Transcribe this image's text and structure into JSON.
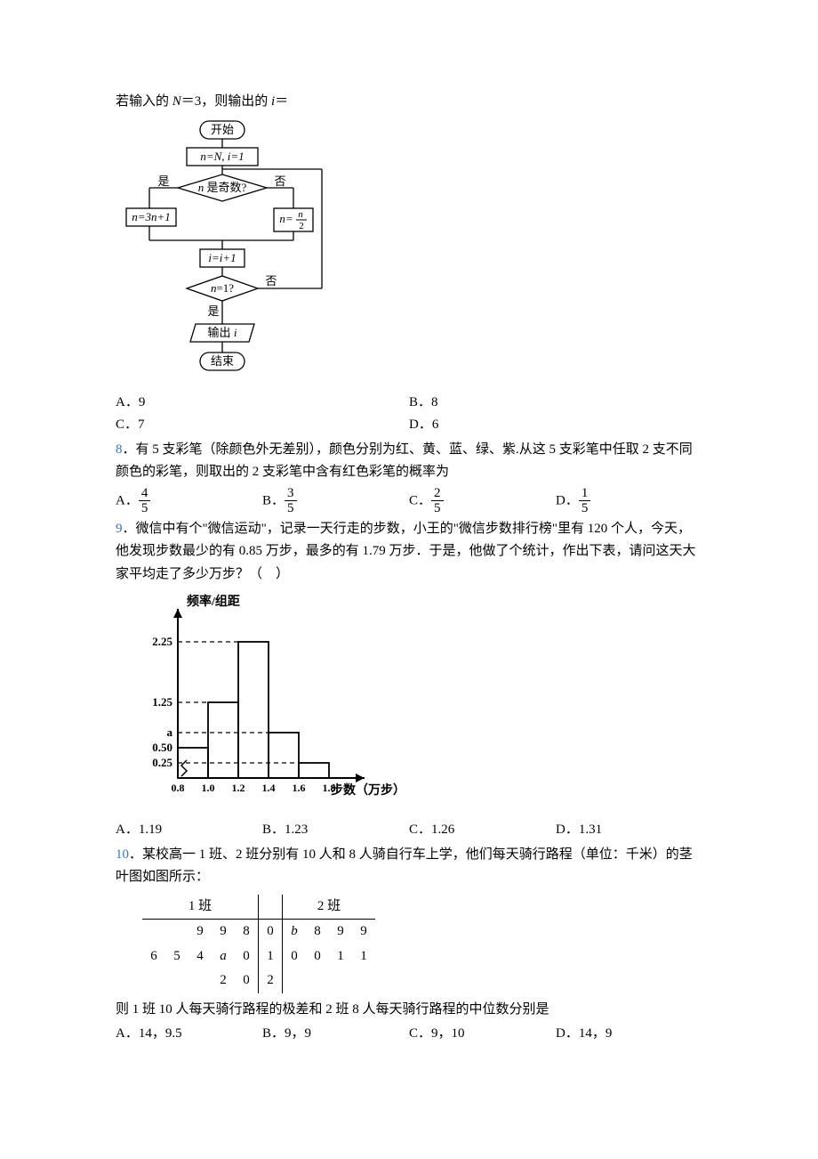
{
  "q7": {
    "intro_prefix": "若输入的 ",
    "intro_var1": "N",
    "intro_mid": "＝3，则输出的 ",
    "intro_var2": "i",
    "intro_suffix": "＝",
    "optA": "A．9",
    "optB": "B．8",
    "optC": "C．7",
    "optD": "D．6",
    "flow": {
      "start": "开始",
      "init_a": "n=N,",
      "init_b": " i=1",
      "cond1": "n 是奇数?",
      "yes": "是",
      "no": "否",
      "left_a": "n=",
      "left_b": "3n+1",
      "right_a": "n=",
      "right_num": "n",
      "right_den": "2",
      "inc": "i=i+1",
      "cond2": "n=1?",
      "out_a": "输出 ",
      "out_b": "i",
      "end": "结束",
      "colors": {
        "stroke": "#000000",
        "fill": "#ffffff",
        "text": "#000000"
      }
    }
  },
  "q8": {
    "num": "8",
    "text": "．有 5 支彩笔（除颜色外无差别），颜色分别为红、黄、蓝、绿、紫.从这 5 支彩笔中任取 2 支不同颜色的彩笔，则取出的 2 支彩笔中含有红色彩笔的概率为",
    "A": {
      "label": "A．",
      "num": "4",
      "den": "5"
    },
    "B": {
      "label": "B．",
      "num": "3",
      "den": "5"
    },
    "C": {
      "label": "C．",
      "num": "2",
      "den": "5"
    },
    "D": {
      "label": "D．",
      "num": "1",
      "den": "5"
    }
  },
  "q9": {
    "num": "9",
    "text": "．微信中有个\"微信运动\"，记录一天行走的步数，小王的\"微信步数排行榜\"里有 120 个人，今天，他发现步数最少的有 0.85 万步，最多的有 1.79 万步．于是，他做了个统计，作出下表，请问这天大家平均走了多少万步？（　）",
    "chart": {
      "ylabel": "频率/组距",
      "xlabel": "步数（万步）",
      "yticks": [
        "0.25",
        "0.50",
        "a",
        "1.25",
        "2.25"
      ],
      "ytick_pos": [
        0.25,
        0.5,
        0.75,
        1.25,
        2.25
      ],
      "xticks": [
        "0.8",
        "1.0",
        "1.2",
        "1.4",
        "1.6",
        "1.8"
      ],
      "xtick_pos": [
        0.8,
        1.0,
        1.2,
        1.4,
        1.6,
        1.8
      ],
      "bars": [
        {
          "x0": 0.8,
          "x1": 1.0,
          "h": 0.5
        },
        {
          "x0": 1.0,
          "x1": 1.2,
          "h": 1.25
        },
        {
          "x0": 1.2,
          "x1": 1.4,
          "h": 2.25
        },
        {
          "x0": 1.4,
          "x1": 1.6,
          "h": 0.75
        },
        {
          "x0": 1.6,
          "x1": 1.8,
          "h": 0.25
        }
      ],
      "ymax": 2.5,
      "stroke": "#000000",
      "bg": "#ffffff"
    },
    "optA": "A．1.19",
    "optB": "B．1.23",
    "optC": "C．1.26",
    "optD": "D．1.31"
  },
  "q10": {
    "num": "10",
    "text1": "．某校高一 1 班、2 班分别有 10 人和 8 人骑自行车上学，他们每天骑行路程（单位：千米）的茎叶图如图所示：",
    "text2": "则 1 班 10 人每天骑行路程的极差和 2 班 8 人每天骑行路程的中位数分别是",
    "stem": {
      "h1": "1 班",
      "h2": "2 班",
      "rows": [
        {
          "l": [
            "",
            "",
            "9",
            "9",
            "8"
          ],
          "s": "0",
          "r": [
            "b",
            "8",
            "9",
            "9"
          ]
        },
        {
          "l": [
            "6",
            "5",
            "4",
            "a",
            "0"
          ],
          "s": "1",
          "r": [
            "0",
            "0",
            "1",
            "1"
          ]
        },
        {
          "l": [
            "",
            "",
            "",
            "2",
            "0"
          ],
          "s": "2",
          "r": [
            "",
            "",
            "",
            ""
          ]
        }
      ]
    },
    "optA": "A．14，9.5",
    "optB": "B．9，9",
    "optC": "C．9，10",
    "optD": "D．14，9"
  }
}
